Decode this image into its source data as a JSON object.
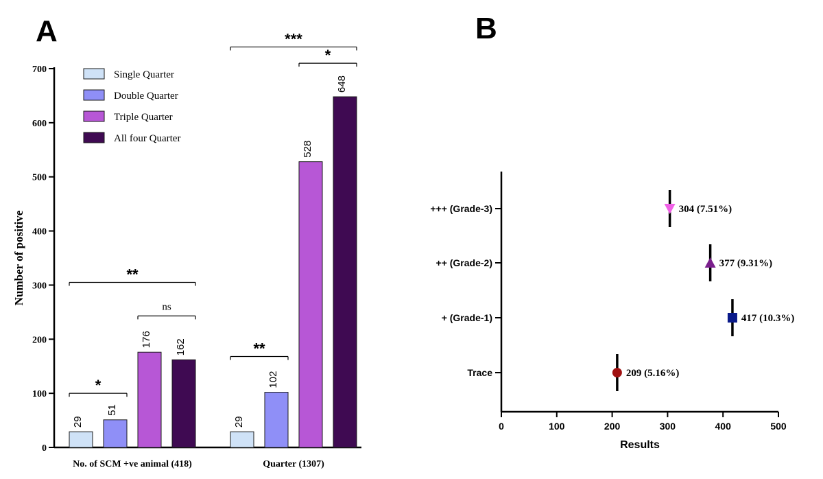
{
  "panel_a_letter": "A",
  "panel_b_letter": "B",
  "colors": {
    "Single Quarter": "#cfe2f7",
    "Double Quarter": "#8f8ff7",
    "Triple Quarter": "#b757d6",
    "All four Quarter": "#3f0a52"
  },
  "chart_data": [
    {
      "type": "bar",
      "title": "",
      "xlabel": "",
      "ylabel": "Number of positive",
      "ylim": [
        0,
        700
      ],
      "yticks": [
        "0",
        "100",
        "200",
        "300",
        "400",
        "500",
        "600",
        "700"
      ],
      "categories": [
        "No. of SCM +ve animal (418)",
        "Quarter (1307)"
      ],
      "series": [
        {
          "name": "Single Quarter",
          "values": [
            29,
            29
          ]
        },
        {
          "name": "Double Quarter",
          "values": [
            51,
            102
          ]
        },
        {
          "name": "Triple Quarter",
          "values": [
            176,
            528
          ]
        },
        {
          "name": "All four Quarter",
          "values": [
            162,
            648
          ]
        }
      ],
      "value_labels": [
        [
          "29",
          "51",
          "176",
          "162"
        ],
        [
          "29",
          "102",
          "528",
          "648"
        ]
      ],
      "legend_position": "top-left",
      "significance": [
        {
          "group": 0,
          "from": 0,
          "to": 1,
          "label": "*",
          "y": 100
        },
        {
          "group": 0,
          "from": 2,
          "to": 3,
          "label": "ns",
          "y": 243
        },
        {
          "group": 0,
          "from": 0,
          "to": 3,
          "label": "**",
          "y": 305
        },
        {
          "group": 1,
          "from": 0,
          "to": 1,
          "label": "**",
          "y": 168
        },
        {
          "group": 1,
          "from": 2,
          "to": 3,
          "label": "*",
          "y": 710
        },
        {
          "group": 1,
          "from": 0,
          "to": 3,
          "label": "***",
          "y": 740
        }
      ]
    },
    {
      "type": "scatter",
      "title": "",
      "xlabel": "Results",
      "ylabel": "",
      "xlim": [
        0,
        500
      ],
      "xticks": [
        "0",
        "100",
        "200",
        "300",
        "400",
        "500"
      ],
      "categories": [
        "+++ (Grade-3)",
        "++ (Grade-2)",
        "+ (Grade-1)",
        "Trace"
      ],
      "points": [
        {
          "category": "+++ (Grade-3)",
          "x": 304,
          "label": "304 (7.51%)",
          "marker": "triangle-down",
          "color": "#f061e6"
        },
        {
          "category": "++ (Grade-2)",
          "x": 377,
          "label": "377 (9.31%)",
          "marker": "triangle-up",
          "color": "#7a1f8c"
        },
        {
          "category": "+ (Grade-1)",
          "x": 417,
          "label": "417 (10.3%)",
          "marker": "square",
          "color": "#0a1a8a"
        },
        {
          "category": "Trace",
          "x": 209,
          "label": "209 (5.16%)",
          "marker": "circle",
          "color": "#a01010"
        }
      ],
      "grid": false
    }
  ]
}
